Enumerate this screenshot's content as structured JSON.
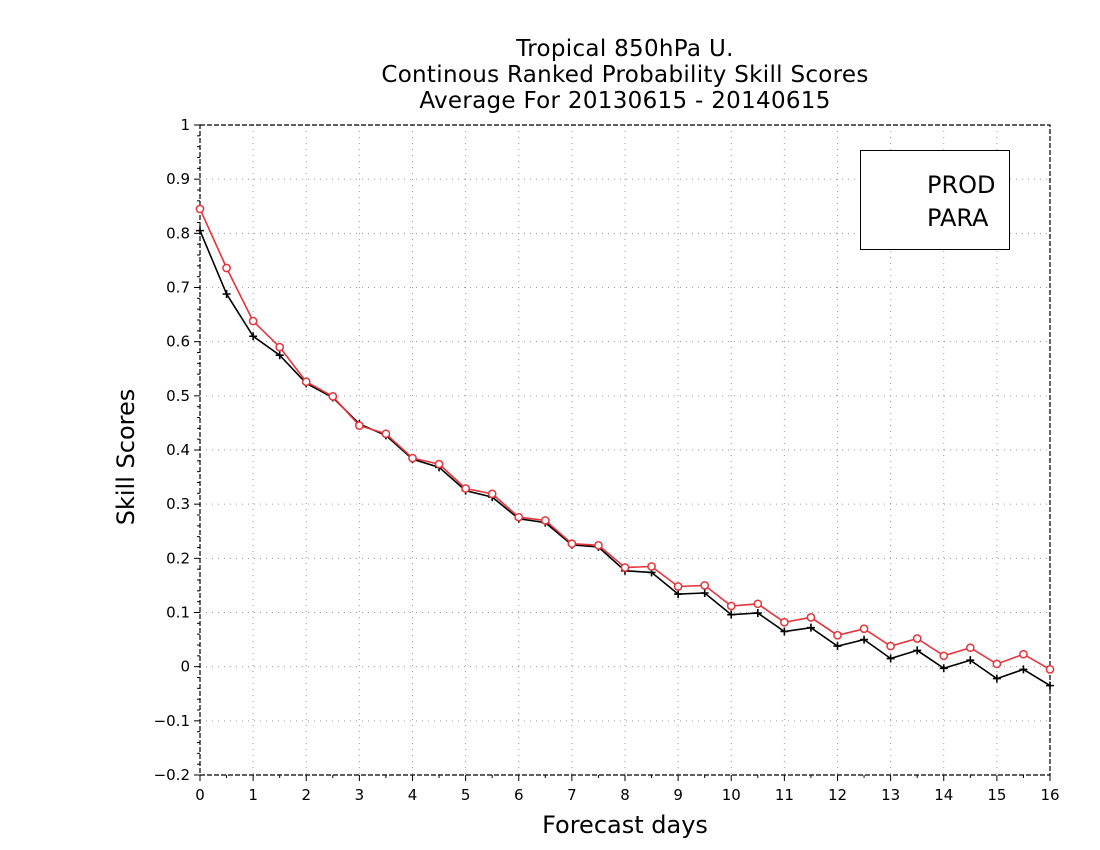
{
  "chart_data": {
    "type": "line",
    "title": [
      "Tropical 850hPa U.",
      "Continous Ranked Probability Skill Scores",
      "Average For 20130615 - 20140615"
    ],
    "xlabel": "Forecast days",
    "ylabel": "Skill Scores",
    "xlim": [
      0,
      16
    ],
    "ylim": [
      -0.2,
      1
    ],
    "xticks": [
      "0",
      "1",
      "2",
      "3",
      "4",
      "5",
      "6",
      "7",
      "8",
      "9",
      "10",
      "11",
      "12",
      "13",
      "14",
      "15",
      "16"
    ],
    "yticks": [
      "−0.2",
      "−0.1",
      "0",
      "0.1",
      "0.2",
      "0.3",
      "0.4",
      "0.5",
      "0.6",
      "0.7",
      "0.8",
      "0.9",
      "1"
    ],
    "grid": true,
    "legend_position": "top-right",
    "x": [
      0,
      0.5,
      1,
      1.5,
      2,
      2.5,
      3,
      3.5,
      4,
      4.5,
      5,
      5.5,
      6,
      6.5,
      7,
      7.5,
      8,
      8.5,
      9,
      9.5,
      10,
      10.5,
      11,
      11.5,
      12,
      12.5,
      13,
      13.5,
      14,
      14.5,
      15,
      15.5,
      16
    ],
    "series": [
      {
        "name": "PROD",
        "color": "#000000",
        "marker": "plus",
        "values": [
          0.805,
          0.688,
          0.61,
          0.575,
          0.523,
          0.497,
          0.448,
          0.427,
          0.383,
          0.368,
          0.325,
          0.313,
          0.273,
          0.266,
          0.225,
          0.221,
          0.177,
          0.174,
          0.134,
          0.136,
          0.096,
          0.099,
          0.065,
          0.072,
          0.038,
          0.05,
          0.015,
          0.03,
          -0.003,
          0.012,
          -0.022,
          -0.005,
          -0.035
        ]
      },
      {
        "name": "PARA",
        "color": "#e8333a",
        "marker": "circle",
        "values": [
          0.845,
          0.736,
          0.638,
          0.59,
          0.526,
          0.499,
          0.445,
          0.43,
          0.385,
          0.374,
          0.329,
          0.319,
          0.276,
          0.27,
          0.227,
          0.224,
          0.183,
          0.185,
          0.148,
          0.15,
          0.112,
          0.116,
          0.082,
          0.091,
          0.058,
          0.07,
          0.038,
          0.052,
          0.02,
          0.035,
          0.005,
          0.023,
          -0.005
        ]
      }
    ]
  }
}
